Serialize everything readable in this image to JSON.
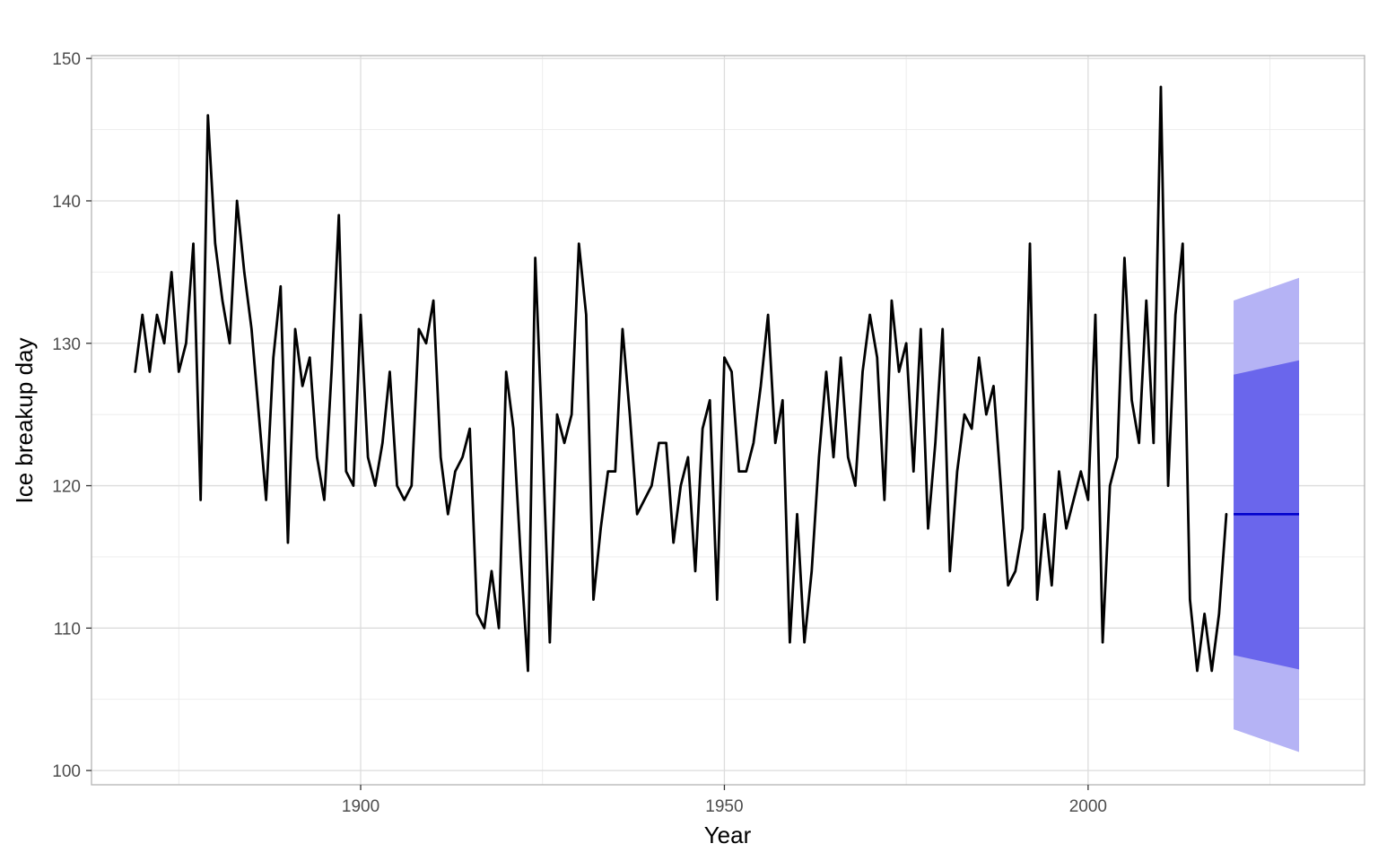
{
  "chart_data": {
    "type": "line",
    "title": "",
    "xlabel": "Year",
    "ylabel": "Ice breakup day",
    "xlim": [
      1863,
      2038
    ],
    "ylim": [
      99,
      150.2
    ],
    "x_ticks": [
      1900,
      1950,
      2000
    ],
    "x_tick_labels": [
      "1900",
      "1950",
      "2000"
    ],
    "y_ticks": [
      100,
      110,
      120,
      130,
      140,
      150
    ],
    "y_tick_labels": [
      "100",
      "110",
      "120",
      "130",
      "140",
      "150"
    ],
    "grid": true,
    "legend": "none",
    "series": [
      {
        "x": [
          1869,
          1870,
          1871,
          1872,
          1873,
          1874,
          1875,
          1876,
          1877,
          1878,
          1879,
          1880,
          1881,
          1882,
          1883,
          1884,
          1885,
          1886,
          1887,
          1888,
          1889,
          1890,
          1891,
          1892,
          1893,
          1894,
          1895,
          1896,
          1897,
          1898,
          1899,
          1900,
          1901,
          1902,
          1903,
          1904,
          1905,
          1906,
          1907,
          1908,
          1909,
          1910,
          1911,
          1912,
          1913,
          1914,
          1915,
          1916,
          1917,
          1918,
          1919,
          1920,
          1921,
          1922,
          1923,
          1924,
          1925,
          1926,
          1927,
          1928,
          1929,
          1930,
          1931,
          1932,
          1933,
          1934,
          1935,
          1936,
          1937,
          1938,
          1939,
          1940,
          1941,
          1942,
          1943,
          1944,
          1945,
          1946,
          1947,
          1948,
          1949,
          1950,
          1951,
          1952,
          1953,
          1954,
          1955,
          1956,
          1957,
          1958,
          1959,
          1960,
          1961,
          1962,
          1963,
          1964,
          1965,
          1966,
          1967,
          1968,
          1969,
          1970,
          1971,
          1972,
          1973,
          1974,
          1975,
          1976,
          1977,
          1978,
          1979,
          1980,
          1981,
          1982,
          1983,
          1984,
          1985,
          1986,
          1987,
          1988,
          1989,
          1990,
          1991,
          1992,
          1993,
          1994,
          1995,
          1996,
          1997,
          1998,
          1999,
          2000,
          2001,
          2002,
          2003,
          2004,
          2005,
          2006,
          2007,
          2008,
          2009,
          2010,
          2011,
          2012,
          2013,
          2014,
          2015,
          2016,
          2017,
          2018,
          2019
        ],
        "values": [
          128,
          132,
          128,
          132,
          130,
          135,
          128,
          130,
          137,
          119,
          146,
          137,
          133,
          130,
          140,
          135,
          131,
          125,
          119,
          129,
          134,
          116,
          131,
          127,
          129,
          122,
          119,
          128,
          139,
          121,
          120,
          132,
          122,
          120,
          123,
          128,
          120,
          119,
          120,
          131,
          130,
          133,
          122,
          118,
          121,
          122,
          124,
          111,
          110,
          114,
          110,
          128,
          124,
          115,
          107,
          136,
          123,
          109,
          125,
          123,
          125,
          137,
          132,
          112,
          117,
          121,
          121,
          131,
          125,
          118,
          119,
          120,
          123,
          123,
          116,
          120,
          122,
          114,
          124,
          126,
          112,
          129,
          128,
          121,
          121,
          123,
          127,
          132,
          123,
          126,
          109,
          118,
          109,
          114,
          122,
          128,
          122,
          129,
          122,
          120,
          128,
          132,
          129,
          119,
          133,
          128,
          130,
          121,
          131,
          117,
          123,
          131,
          114,
          121,
          125,
          124,
          129,
          125,
          127,
          120,
          113,
          114,
          117,
          137,
          112,
          118,
          113,
          121,
          117,
          119,
          121,
          119,
          132,
          109,
          120,
          122,
          136,
          126,
          123,
          133,
          123,
          148,
          120,
          132,
          137,
          112,
          107,
          111,
          107,
          111,
          118
        ],
        "color": "#000000"
      }
    ],
    "forecast": {
      "x": [
        2020,
        2029
      ],
      "mean": [
        118,
        118
      ],
      "pi80_lower": [
        108.1,
        107.1
      ],
      "pi80_upper": [
        127.8,
        128.8
      ],
      "pi95_lower": [
        102.9,
        101.3
      ],
      "pi95_upper": [
        133,
        134.6
      ],
      "mean_color": "#0000cc",
      "pi80_color": "#6a66ec",
      "pi95_color": "#b5b3f5"
    }
  }
}
